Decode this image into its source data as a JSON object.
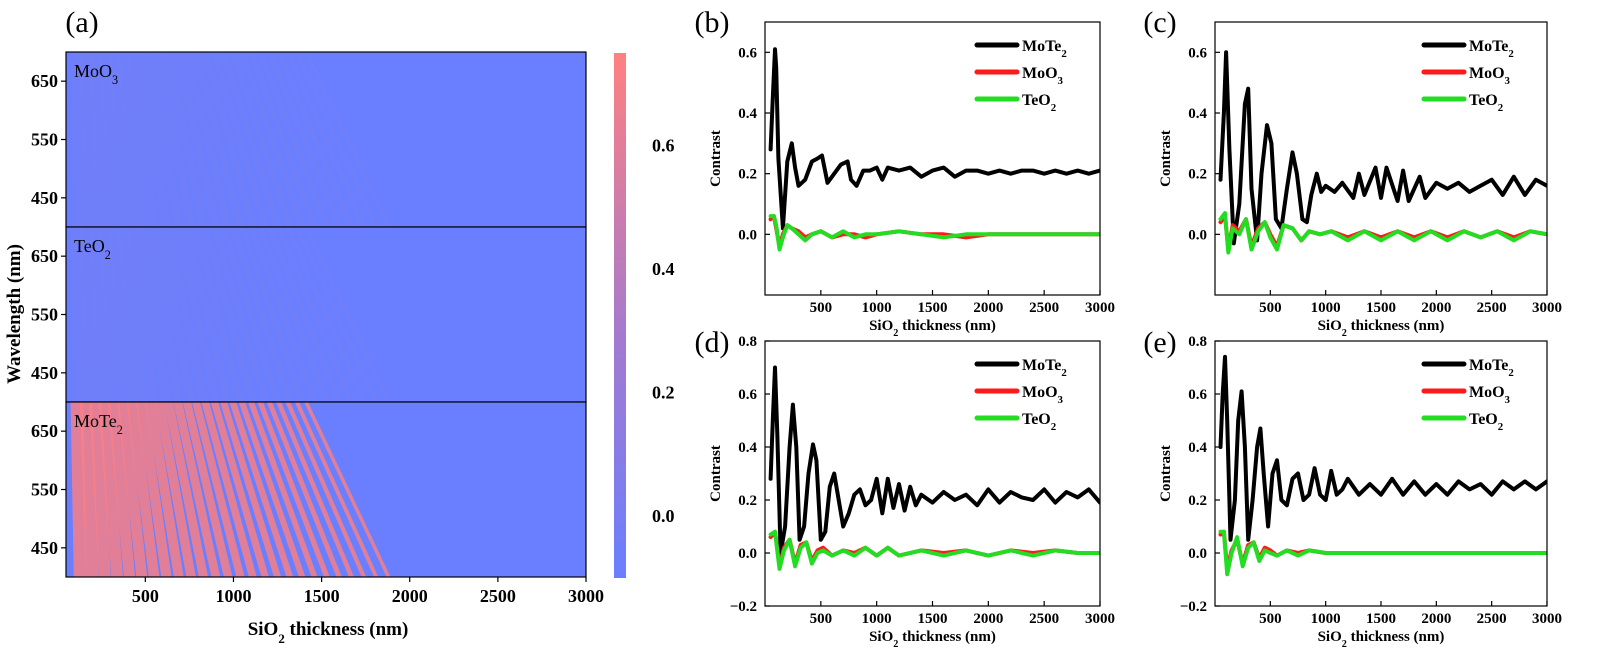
{
  "figure": {
    "panel_labels": [
      "(a)",
      "(b)",
      "(c)",
      "(d)",
      "(e)"
    ]
  },
  "colors": {
    "mote2": "#000000",
    "moo3": "#ff1a1a",
    "teo2": "#22dd22",
    "heat_low": "#6a7fff",
    "heat_high": "#ff8080"
  },
  "chart_data": [
    {
      "panel": "(a)",
      "type": "heatmap",
      "xlabel": "SiO2 thickness (nm)",
      "xlabel_parts": {
        "base": "SiO",
        "sub": "2",
        "tail": " thickness (nm)"
      },
      "ylabel": "Wavelength (nm)",
      "xlim": [
        50,
        3000
      ],
      "ylim": [
        400,
        700
      ],
      "xticks": [
        500,
        1000,
        1500,
        2000,
        2500,
        3000
      ],
      "yticks": [
        450,
        550,
        650
      ],
      "subpanels": [
        {
          "label": "MoO3",
          "label_parts": {
            "base": "MoO",
            "sub": "3"
          },
          "stripe_intensity": 0.04
        },
        {
          "label": "TeO2",
          "label_parts": {
            "base": "TeO",
            "sub": "2"
          },
          "stripe_intensity": 0.04
        },
        {
          "label": "MoTe2",
          "label_parts": {
            "base": "MoTe",
            "sub": "2"
          },
          "stripe_intensity": 0.95
        }
      ],
      "colorbar": {
        "range": [
          -0.1,
          0.75
        ],
        "ticks": [
          0.0,
          0.2,
          0.4,
          0.6
        ],
        "tick_labels": [
          "0.0",
          "0.2",
          "0.4",
          "0.6"
        ]
      }
    },
    {
      "panel": "(b)",
      "type": "line",
      "xlabel": "SiO2 thickness (nm)",
      "ylabel": "Contrast",
      "xlim": [
        0,
        3000
      ],
      "ylim": [
        -0.2,
        0.7
      ],
      "xticks": [
        500,
        1000,
        1500,
        2000,
        2500,
        3000
      ],
      "yticks": [
        0.0,
        0.2,
        0.4,
        0.6
      ],
      "ytick_labels": [
        "0.0",
        "0.2",
        "0.4",
        "0.6"
      ],
      "legend": [
        "MoTe2",
        "MoO3",
        "TeO2"
      ],
      "series": [
        {
          "name": "MoTe2",
          "x": [
            50,
            70,
            90,
            100,
            120,
            160,
            200,
            240,
            270,
            300,
            360,
            420,
            470,
            510,
            560,
            620,
            680,
            740,
            770,
            820,
            880,
            940,
            1000,
            1050,
            1100,
            1200,
            1300,
            1400,
            1500,
            1600,
            1700,
            1800,
            1900,
            2000,
            2100,
            2200,
            2300,
            2400,
            2500,
            2600,
            2700,
            2800,
            2900,
            3000
          ],
          "y": [
            0.28,
            0.45,
            0.61,
            0.55,
            0.25,
            0.02,
            0.24,
            0.3,
            0.22,
            0.16,
            0.18,
            0.24,
            0.25,
            0.26,
            0.17,
            0.2,
            0.23,
            0.24,
            0.18,
            0.16,
            0.21,
            0.21,
            0.22,
            0.18,
            0.22,
            0.21,
            0.22,
            0.19,
            0.21,
            0.22,
            0.19,
            0.21,
            0.21,
            0.2,
            0.21,
            0.2,
            0.21,
            0.21,
            0.2,
            0.21,
            0.2,
            0.21,
            0.2,
            0.21
          ]
        },
        {
          "name": "MoO3",
          "x": [
            50,
            80,
            100,
            130,
            160,
            200,
            240,
            300,
            360,
            420,
            500,
            600,
            700,
            800,
            900,
            1000,
            1200,
            1400,
            1600,
            1800,
            2000,
            2200,
            2400,
            2600,
            2800,
            3000
          ],
          "y": [
            0.05,
            0.06,
            0.02,
            -0.04,
            0.0,
            0.03,
            0.02,
            0.01,
            -0.01,
            0.0,
            0.01,
            -0.01,
            0.0,
            0.0,
            -0.01,
            0.0,
            0.01,
            0.0,
            0.0,
            -0.01,
            0.0,
            0.0,
            0.0,
            0.0,
            0.0,
            0.0
          ]
        },
        {
          "name": "TeO2",
          "x": [
            50,
            80,
            100,
            130,
            160,
            200,
            240,
            300,
            360,
            420,
            500,
            600,
            700,
            800,
            900,
            1000,
            1200,
            1400,
            1600,
            1800,
            2000,
            2200,
            2400,
            2600,
            2800,
            3000
          ],
          "y": [
            0.06,
            0.06,
            0.03,
            -0.05,
            -0.01,
            0.03,
            0.02,
            0.0,
            -0.02,
            0.0,
            0.01,
            -0.01,
            0.01,
            -0.01,
            0.0,
            0.0,
            0.01,
            0.0,
            -0.01,
            0.0,
            0.0,
            0.0,
            0.0,
            0.0,
            0.0,
            0.0
          ]
        }
      ]
    },
    {
      "panel": "(c)",
      "type": "line",
      "xlabel": "SiO2 thickness (nm)",
      "ylabel": "Contrast",
      "xlim": [
        0,
        3000
      ],
      "ylim": [
        -0.2,
        0.7
      ],
      "xticks": [
        500,
        1000,
        1500,
        2000,
        2500,
        3000
      ],
      "yticks": [
        0.0,
        0.2,
        0.4,
        0.6
      ],
      "ytick_labels": [
        "0.0",
        "0.2",
        "0.4",
        "0.6"
      ],
      "legend": [
        "MoTe2",
        "MoO3",
        "TeO2"
      ],
      "series": [
        {
          "name": "MoTe2",
          "x": [
            50,
            80,
            100,
            130,
            170,
            220,
            270,
            300,
            330,
            380,
            420,
            470,
            510,
            550,
            600,
            650,
            700,
            740,
            790,
            830,
            870,
            920,
            960,
            1000,
            1080,
            1150,
            1250,
            1300,
            1350,
            1450,
            1500,
            1550,
            1650,
            1700,
            1750,
            1850,
            1900,
            2000,
            2100,
            2200,
            2300,
            2400,
            2500,
            2600,
            2700,
            2800,
            2900,
            3000
          ],
          "y": [
            0.18,
            0.4,
            0.6,
            0.28,
            -0.03,
            0.1,
            0.43,
            0.48,
            0.15,
            -0.02,
            0.2,
            0.36,
            0.3,
            0.05,
            0.02,
            0.15,
            0.27,
            0.2,
            0.05,
            0.04,
            0.13,
            0.2,
            0.14,
            0.16,
            0.14,
            0.17,
            0.12,
            0.2,
            0.13,
            0.22,
            0.12,
            0.22,
            0.11,
            0.21,
            0.11,
            0.19,
            0.12,
            0.17,
            0.15,
            0.17,
            0.14,
            0.16,
            0.18,
            0.13,
            0.19,
            0.13,
            0.18,
            0.16
          ]
        },
        {
          "name": "MoO3",
          "x": [
            50,
            90,
            120,
            160,
            220,
            280,
            330,
            390,
            450,
            500,
            560,
            620,
            700,
            780,
            850,
            950,
            1050,
            1200,
            1350,
            1500,
            1650,
            1800,
            1950,
            2100,
            2250,
            2400,
            2550,
            2700,
            2850,
            3000
          ],
          "y": [
            0.04,
            0.06,
            -0.05,
            0.03,
            0.01,
            0.05,
            -0.04,
            0.02,
            0.04,
            0.0,
            -0.04,
            0.03,
            0.02,
            -0.02,
            0.01,
            0.0,
            0.01,
            -0.01,
            0.01,
            -0.01,
            0.01,
            -0.01,
            0.01,
            -0.01,
            0.01,
            -0.01,
            0.01,
            -0.01,
            0.01,
            0.0
          ]
        },
        {
          "name": "TeO2",
          "x": [
            50,
            90,
            120,
            160,
            220,
            280,
            330,
            390,
            450,
            500,
            560,
            620,
            700,
            780,
            850,
            950,
            1050,
            1200,
            1350,
            1500,
            1650,
            1800,
            1950,
            2100,
            2250,
            2400,
            2550,
            2700,
            2850,
            3000
          ],
          "y": [
            0.05,
            0.07,
            -0.06,
            0.02,
            0.0,
            0.05,
            -0.05,
            0.01,
            0.04,
            -0.01,
            -0.05,
            0.03,
            0.02,
            -0.02,
            0.01,
            0.0,
            0.01,
            -0.02,
            0.01,
            -0.02,
            0.01,
            -0.02,
            0.01,
            -0.02,
            0.01,
            -0.01,
            0.01,
            -0.02,
            0.01,
            0.0
          ]
        }
      ]
    },
    {
      "panel": "(d)",
      "type": "line",
      "xlabel": "SiO2 thickness (nm)",
      "ylabel": "Contrast",
      "xlim": [
        0,
        3000
      ],
      "ylim": [
        -0.2,
        0.8
      ],
      "xticks": [
        500,
        1000,
        1500,
        2000,
        2500,
        3000
      ],
      "yticks": [
        -0.2,
        0.0,
        0.2,
        0.4,
        0.6,
        0.8
      ],
      "ytick_labels": [
        "−0.2",
        "0.0",
        "0.2",
        "0.4",
        "0.6",
        "0.8"
      ],
      "legend": [
        "MoTe2",
        "MoO3",
        "TeO2"
      ],
      "series": [
        {
          "name": "MoTe2",
          "x": [
            50,
            70,
            90,
            110,
            140,
            180,
            220,
            250,
            280,
            310,
            350,
            390,
            430,
            460,
            500,
            540,
            580,
            620,
            660,
            700,
            750,
            800,
            850,
            900,
            950,
            1000,
            1050,
            1100,
            1150,
            1200,
            1250,
            1300,
            1350,
            1400,
            1500,
            1600,
            1700,
            1800,
            1900,
            2000,
            2100,
            2200,
            2300,
            2400,
            2500,
            2600,
            2700,
            2800,
            2900,
            3000
          ],
          "y": [
            0.28,
            0.5,
            0.7,
            0.45,
            0.0,
            0.1,
            0.4,
            0.56,
            0.4,
            0.05,
            0.1,
            0.3,
            0.41,
            0.35,
            0.05,
            0.08,
            0.25,
            0.3,
            0.2,
            0.1,
            0.15,
            0.22,
            0.24,
            0.18,
            0.2,
            0.28,
            0.15,
            0.28,
            0.17,
            0.26,
            0.16,
            0.25,
            0.18,
            0.22,
            0.19,
            0.23,
            0.2,
            0.22,
            0.18,
            0.24,
            0.19,
            0.23,
            0.21,
            0.2,
            0.24,
            0.19,
            0.23,
            0.21,
            0.24,
            0.19
          ]
        },
        {
          "name": "MoO3",
          "x": [
            50,
            90,
            130,
            170,
            220,
            270,
            320,
            370,
            420,
            470,
            520,
            600,
            700,
            800,
            900,
            1000,
            1100,
            1200,
            1400,
            1600,
            1800,
            2000,
            2200,
            2400,
            2600,
            2800,
            3000
          ],
          "y": [
            0.06,
            0.08,
            -0.05,
            0.02,
            0.05,
            -0.04,
            0.03,
            0.04,
            -0.03,
            0.01,
            0.02,
            -0.01,
            0.01,
            0.0,
            0.02,
            -0.01,
            0.02,
            -0.01,
            0.01,
            0.0,
            0.01,
            -0.01,
            0.01,
            0.0,
            0.01,
            0.0,
            0.0
          ]
        },
        {
          "name": "TeO2",
          "x": [
            50,
            90,
            130,
            170,
            220,
            270,
            320,
            370,
            420,
            470,
            520,
            600,
            700,
            800,
            900,
            1000,
            1100,
            1200,
            1400,
            1600,
            1800,
            2000,
            2200,
            2400,
            2600,
            2800,
            3000
          ],
          "y": [
            0.07,
            0.08,
            -0.06,
            0.01,
            0.05,
            -0.05,
            0.02,
            0.04,
            -0.04,
            0.0,
            0.01,
            -0.01,
            0.01,
            -0.01,
            0.02,
            -0.01,
            0.02,
            -0.01,
            0.01,
            -0.01,
            0.01,
            -0.01,
            0.01,
            -0.01,
            0.01,
            0.0,
            0.0
          ]
        }
      ]
    },
    {
      "panel": "(e)",
      "type": "line",
      "xlabel": "SiO2 thickness (nm)",
      "ylabel": "Contrast",
      "xlim": [
        0,
        3000
      ],
      "ylim": [
        -0.2,
        0.8
      ],
      "xticks": [
        500,
        1000,
        1500,
        2000,
        2500,
        3000
      ],
      "yticks": [
        -0.2,
        0.0,
        0.2,
        0.4,
        0.6,
        0.8
      ],
      "ytick_labels": [
        "−0.2",
        "0.0",
        "0.2",
        "0.4",
        "0.6",
        "0.8"
      ],
      "legend": [
        "MoTe2",
        "MoO3",
        "TeO2"
      ],
      "series": [
        {
          "name": "MoTe2",
          "x": [
            50,
            70,
            90,
            110,
            140,
            180,
            210,
            240,
            270,
            300,
            340,
            380,
            410,
            440,
            480,
            520,
            560,
            600,
            650,
            700,
            750,
            800,
            850,
            900,
            950,
            1000,
            1050,
            1100,
            1150,
            1200,
            1300,
            1400,
            1500,
            1600,
            1700,
            1800,
            1900,
            2000,
            2100,
            2200,
            2300,
            2400,
            2500,
            2600,
            2700,
            2800,
            2900,
            3000
          ],
          "y": [
            0.4,
            0.6,
            0.74,
            0.5,
            0.05,
            0.2,
            0.5,
            0.61,
            0.4,
            0.05,
            0.2,
            0.4,
            0.47,
            0.3,
            0.1,
            0.3,
            0.35,
            0.2,
            0.18,
            0.28,
            0.3,
            0.2,
            0.22,
            0.32,
            0.22,
            0.2,
            0.31,
            0.22,
            0.24,
            0.28,
            0.22,
            0.26,
            0.22,
            0.28,
            0.22,
            0.27,
            0.22,
            0.26,
            0.22,
            0.27,
            0.24,
            0.26,
            0.22,
            0.27,
            0.24,
            0.27,
            0.24,
            0.27
          ]
        },
        {
          "name": "MoO3",
          "x": [
            50,
            80,
            110,
            150,
            200,
            250,
            300,
            350,
            400,
            450,
            500,
            560,
            650,
            750,
            850,
            1000,
            1200,
            1400,
            1600,
            1800,
            2000,
            2200,
            2400,
            2600,
            2800,
            3000
          ],
          "y": [
            0.07,
            0.08,
            -0.06,
            0.01,
            0.05,
            -0.04,
            0.03,
            0.04,
            -0.02,
            0.02,
            0.01,
            -0.01,
            0.01,
            0.0,
            0.01,
            0.0,
            0.0,
            0.0,
            0.0,
            0.0,
            0.0,
            0.0,
            0.0,
            0.0,
            0.0,
            0.0
          ]
        },
        {
          "name": "TeO2",
          "x": [
            50,
            80,
            110,
            150,
            200,
            250,
            300,
            350,
            400,
            450,
            500,
            560,
            650,
            750,
            850,
            1000,
            1200,
            1400,
            1600,
            1800,
            2000,
            2200,
            2400,
            2600,
            2800,
            3000
          ],
          "y": [
            0.08,
            0.08,
            -0.08,
            0.0,
            0.06,
            -0.05,
            0.02,
            0.04,
            -0.03,
            0.01,
            0.0,
            -0.01,
            0.01,
            -0.01,
            0.01,
            0.0,
            0.0,
            0.0,
            0.0,
            0.0,
            0.0,
            0.0,
            0.0,
            0.0,
            0.0,
            0.0
          ]
        }
      ]
    }
  ]
}
